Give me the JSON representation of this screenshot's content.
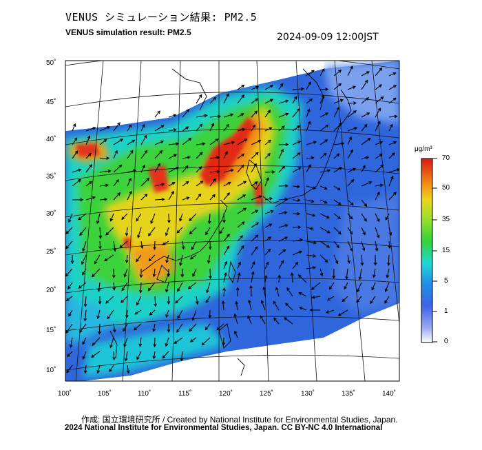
{
  "header": {
    "title_jp": "VENUS シミュレーション結果: PM2.5",
    "title_en": "VENUS simulation result: PM2.5",
    "timestamp": "2024-09-09 12:00JST"
  },
  "map": {
    "lon_ticks": [
      "100˚",
      "105˚",
      "110˚",
      "115˚",
      "120˚",
      "125˚",
      "130˚",
      "135˚",
      "140˚"
    ],
    "lat_ticks": [
      "50˚",
      "45˚",
      "40˚",
      "35˚",
      "30˚",
      "25˚",
      "20˚",
      "15˚",
      "10˚"
    ],
    "colors": {
      "background_blue": "#2f6fe0",
      "low": "#6fa3ee",
      "cyan": "#1fd7d0",
      "green": "#38d43c",
      "yellow": "#e8d51c",
      "orange": "#f08a14",
      "red": "#e0241a"
    }
  },
  "colorbar": {
    "unit": "μg/m³",
    "ticks": [
      "70",
      "50",
      "35",
      "15",
      "5",
      "1",
      "0"
    ]
  },
  "footer": {
    "credit_line1": "作成: 国立環境研究所 / Created by National Institute for Environmental Studies, Japan.",
    "credit_line2": "2024 National Institute for Environmental Studies, Japan. CC BY-NC 4.0 International"
  }
}
